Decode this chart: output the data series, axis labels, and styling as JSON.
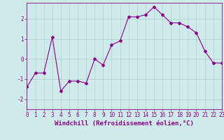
{
  "x": [
    0,
    1,
    2,
    3,
    4,
    5,
    6,
    7,
    8,
    9,
    10,
    11,
    12,
    13,
    14,
    15,
    16,
    17,
    18,
    19,
    20,
    21,
    22,
    23
  ],
  "y": [
    -1.4,
    -0.7,
    -0.7,
    1.1,
    -1.6,
    -1.1,
    -1.1,
    -1.2,
    0.0,
    -0.3,
    0.7,
    0.9,
    2.1,
    2.1,
    2.2,
    2.6,
    2.2,
    1.8,
    1.8,
    1.6,
    1.3,
    0.4,
    -0.2,
    -0.2
  ],
  "line_color": "#8B008B",
  "marker": "D",
  "marker_size": 2.0,
  "line_width": 0.8,
  "xlabel": "Windchill (Refroidissement éolien,°C)",
  "xlabel_fontsize": 6.5,
  "xlim": [
    0,
    23
  ],
  "ylim": [
    -2.5,
    2.8
  ],
  "yticks": [
    -2,
    -1,
    0,
    1,
    2
  ],
  "xticks": [
    0,
    1,
    2,
    3,
    4,
    5,
    6,
    7,
    8,
    9,
    10,
    11,
    12,
    13,
    14,
    15,
    16,
    17,
    18,
    19,
    20,
    21,
    22,
    23
  ],
  "tick_fontsize": 5.5,
  "background_color": "#ceeaea",
  "grid_color": "#b0cccc"
}
